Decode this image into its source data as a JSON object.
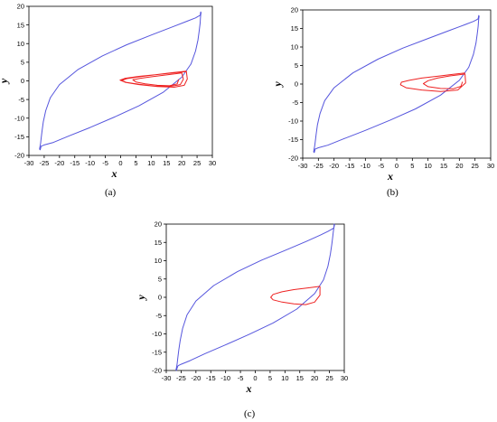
{
  "figure": {
    "captions": [
      "(a)",
      "(b)",
      "(c)"
    ]
  },
  "colors": {
    "large_orbit": "#5555dd",
    "small_orbit": "#ee2222",
    "axis": "#000000"
  },
  "chart_data": [
    {
      "type": "line",
      "title": "",
      "xlabel": "x",
      "ylabel": "y",
      "xlim": [
        -30,
        30
      ],
      "ylim": [
        -20,
        20
      ],
      "x_ticks": [
        -30,
        -25,
        -20,
        -15,
        -10,
        -5,
        0,
        5,
        10,
        15,
        20,
        25,
        30
      ],
      "y_ticks": [
        -20,
        -15,
        -10,
        -5,
        0,
        5,
        10,
        15,
        20
      ],
      "grid": false,
      "series": [
        {
          "color": "#5555dd",
          "x": [
            26,
            25.4,
            24.5,
            22,
            17,
            10,
            2,
            -6,
            -14,
            -20,
            -23,
            -24.5,
            -25.3,
            -25.7,
            -26,
            -26.2,
            -26.4,
            -26.5,
            -26.3,
            -26,
            -25.9,
            -25,
            -22,
            -17,
            -10,
            -2,
            6,
            14,
            20,
            23,
            24.5,
            25.3,
            25.7,
            26,
            26.1,
            26.2,
            26.3,
            26.2,
            26
          ],
          "y": [
            17.6,
            17.3,
            16.9,
            16.1,
            14.5,
            12.3,
            9.7,
            6.7,
            3,
            -1,
            -4.5,
            -8,
            -11,
            -13.5,
            -15.5,
            -16.8,
            -17.7,
            -18.3,
            -18.5,
            -17.5,
            -17.5,
            -17.2,
            -16.5,
            -14.8,
            -12.5,
            -9.7,
            -6.7,
            -3,
            1,
            4.5,
            8,
            11,
            13.5,
            15.5,
            16.8,
            17.7,
            18.3,
            18.5,
            17.6
          ]
        },
        {
          "color": "#ee2222",
          "x": [
            21.5,
            18,
            12,
            6,
            1.5,
            -0.2,
            1.5,
            6,
            12,
            17.5,
            20.8,
            21.8,
            21.5,
            17,
            11,
            6,
            2,
            0.3,
            1.8,
            6,
            11,
            16,
            19.5,
            20.5,
            20,
            15,
            10,
            6.5,
            4,
            5,
            8,
            12,
            16,
            18.5,
            19
          ],
          "y": [
            2.5,
            2.2,
            1.7,
            1.2,
            0.7,
            0.2,
            -0.4,
            -1,
            -1.5,
            -1.7,
            -1.2,
            0.5,
            2.6,
            2.2,
            1.6,
            1.1,
            0.6,
            0.1,
            -0.4,
            -0.9,
            -1.4,
            -1.5,
            -1,
            0.4,
            2.1,
            1.6,
            1.1,
            0.7,
            0.3,
            -0.3,
            -0.8,
            -1.2,
            -1.3,
            -0.8,
            0.4
          ]
        }
      ]
    },
    {
      "type": "line",
      "title": "",
      "xlabel": "x",
      "ylabel": "y",
      "xlim": [
        -30,
        30
      ],
      "ylim": [
        -20,
        20
      ],
      "x_ticks": [
        -30,
        -25,
        -20,
        -15,
        -10,
        -5,
        0,
        5,
        10,
        15,
        20,
        25,
        30
      ],
      "y_ticks": [
        -20,
        -15,
        -10,
        -5,
        0,
        5,
        10,
        15,
        20
      ],
      "grid": false,
      "series": [
        {
          "color": "#5555dd",
          "x": [
            26,
            25.4,
            24.5,
            22,
            17,
            10,
            2,
            -6,
            -14,
            -20,
            -23,
            -24.5,
            -25.3,
            -25.7,
            -26,
            -26.2,
            -26.4,
            -26.5,
            -26.3,
            -26,
            -25.9,
            -25,
            -22,
            -17,
            -10,
            -2,
            6,
            14,
            20,
            23,
            24.5,
            25.3,
            25.7,
            26,
            26.1,
            26.2,
            26.3,
            26.2,
            26
          ],
          "y": [
            17.6,
            17.3,
            16.9,
            16.1,
            14.5,
            12.3,
            9.7,
            6.7,
            3,
            -1,
            -4.5,
            -8,
            -11,
            -13.5,
            -15.5,
            -16.8,
            -17.7,
            -18.3,
            -18.5,
            -17.5,
            -17.5,
            -17.2,
            -16.5,
            -14.8,
            -12.5,
            -9.7,
            -6.7,
            -3,
            1,
            4.5,
            8,
            11,
            13.5,
            15.5,
            16.8,
            17.7,
            18.3,
            18.5,
            17.6
          ]
        },
        {
          "color": "#ee2222",
          "x": [
            21.8,
            18,
            13,
            8,
            4,
            1.5,
            1.2,
            3,
            8,
            14,
            19.5,
            22,
            21.8,
            17,
            13,
            10,
            8.5,
            10,
            14,
            18,
            20.5,
            21
          ],
          "y": [
            3,
            2.6,
            2.1,
            1.6,
            1,
            0.5,
            -0.2,
            -1,
            -1.6,
            -2,
            -1.6,
            0.3,
            2.7,
            2.2,
            1.6,
            0.9,
            0.1,
            -0.7,
            -1.2,
            -1.3,
            -0.6,
            0.6
          ]
        }
      ]
    },
    {
      "type": "line",
      "title": "",
      "xlabel": "x",
      "ylabel": "y",
      "xlim": [
        -30,
        30
      ],
      "ylim": [
        -20,
        20
      ],
      "x_ticks": [
        -30,
        -25,
        -20,
        -15,
        -10,
        -5,
        0,
        5,
        10,
        15,
        20,
        25,
        30
      ],
      "y_ticks": [
        -20,
        -15,
        -10,
        -5,
        0,
        5,
        10,
        15,
        20
      ],
      "grid": false,
      "series": [
        {
          "color": "#5555dd",
          "x": [
            26.5,
            25.8,
            24.5,
            22,
            17,
            10,
            2,
            -6,
            -14,
            -20,
            -23,
            -24.5,
            -25.3,
            -25.8,
            -26.1,
            -26.3,
            -26.5,
            -26.7,
            -26.6,
            -26.2,
            -26,
            -25,
            -22,
            -17,
            -10,
            -2,
            6,
            14,
            20,
            23,
            24.5,
            25.3,
            25.8,
            26.1,
            26.3,
            26.5,
            26.7,
            26.6,
            26.5
          ],
          "y": [
            19,
            18.6,
            18,
            17,
            15.2,
            12.8,
            10.1,
            7,
            3.2,
            -1,
            -4.8,
            -8.5,
            -11.8,
            -14.5,
            -16.5,
            -18,
            -19,
            -19.8,
            -20,
            -19,
            -18.7,
            -18.3,
            -17.3,
            -15.4,
            -13,
            -10.1,
            -7,
            -3.2,
            1,
            4.8,
            8.5,
            11.8,
            14.5,
            16.5,
            18,
            19,
            19.8,
            20,
            19
          ]
        },
        {
          "color": "#ee2222",
          "x": [
            21.8,
            18,
            13,
            9,
            6,
            5.2,
            6,
            9,
            13,
            17,
            20,
            21.8,
            21.8
          ],
          "y": [
            3,
            2.6,
            2.1,
            1.5,
            0.8,
            0,
            -0.7,
            -1.3,
            -1.8,
            -2,
            -1.3,
            0.6,
            3
          ]
        }
      ]
    }
  ]
}
